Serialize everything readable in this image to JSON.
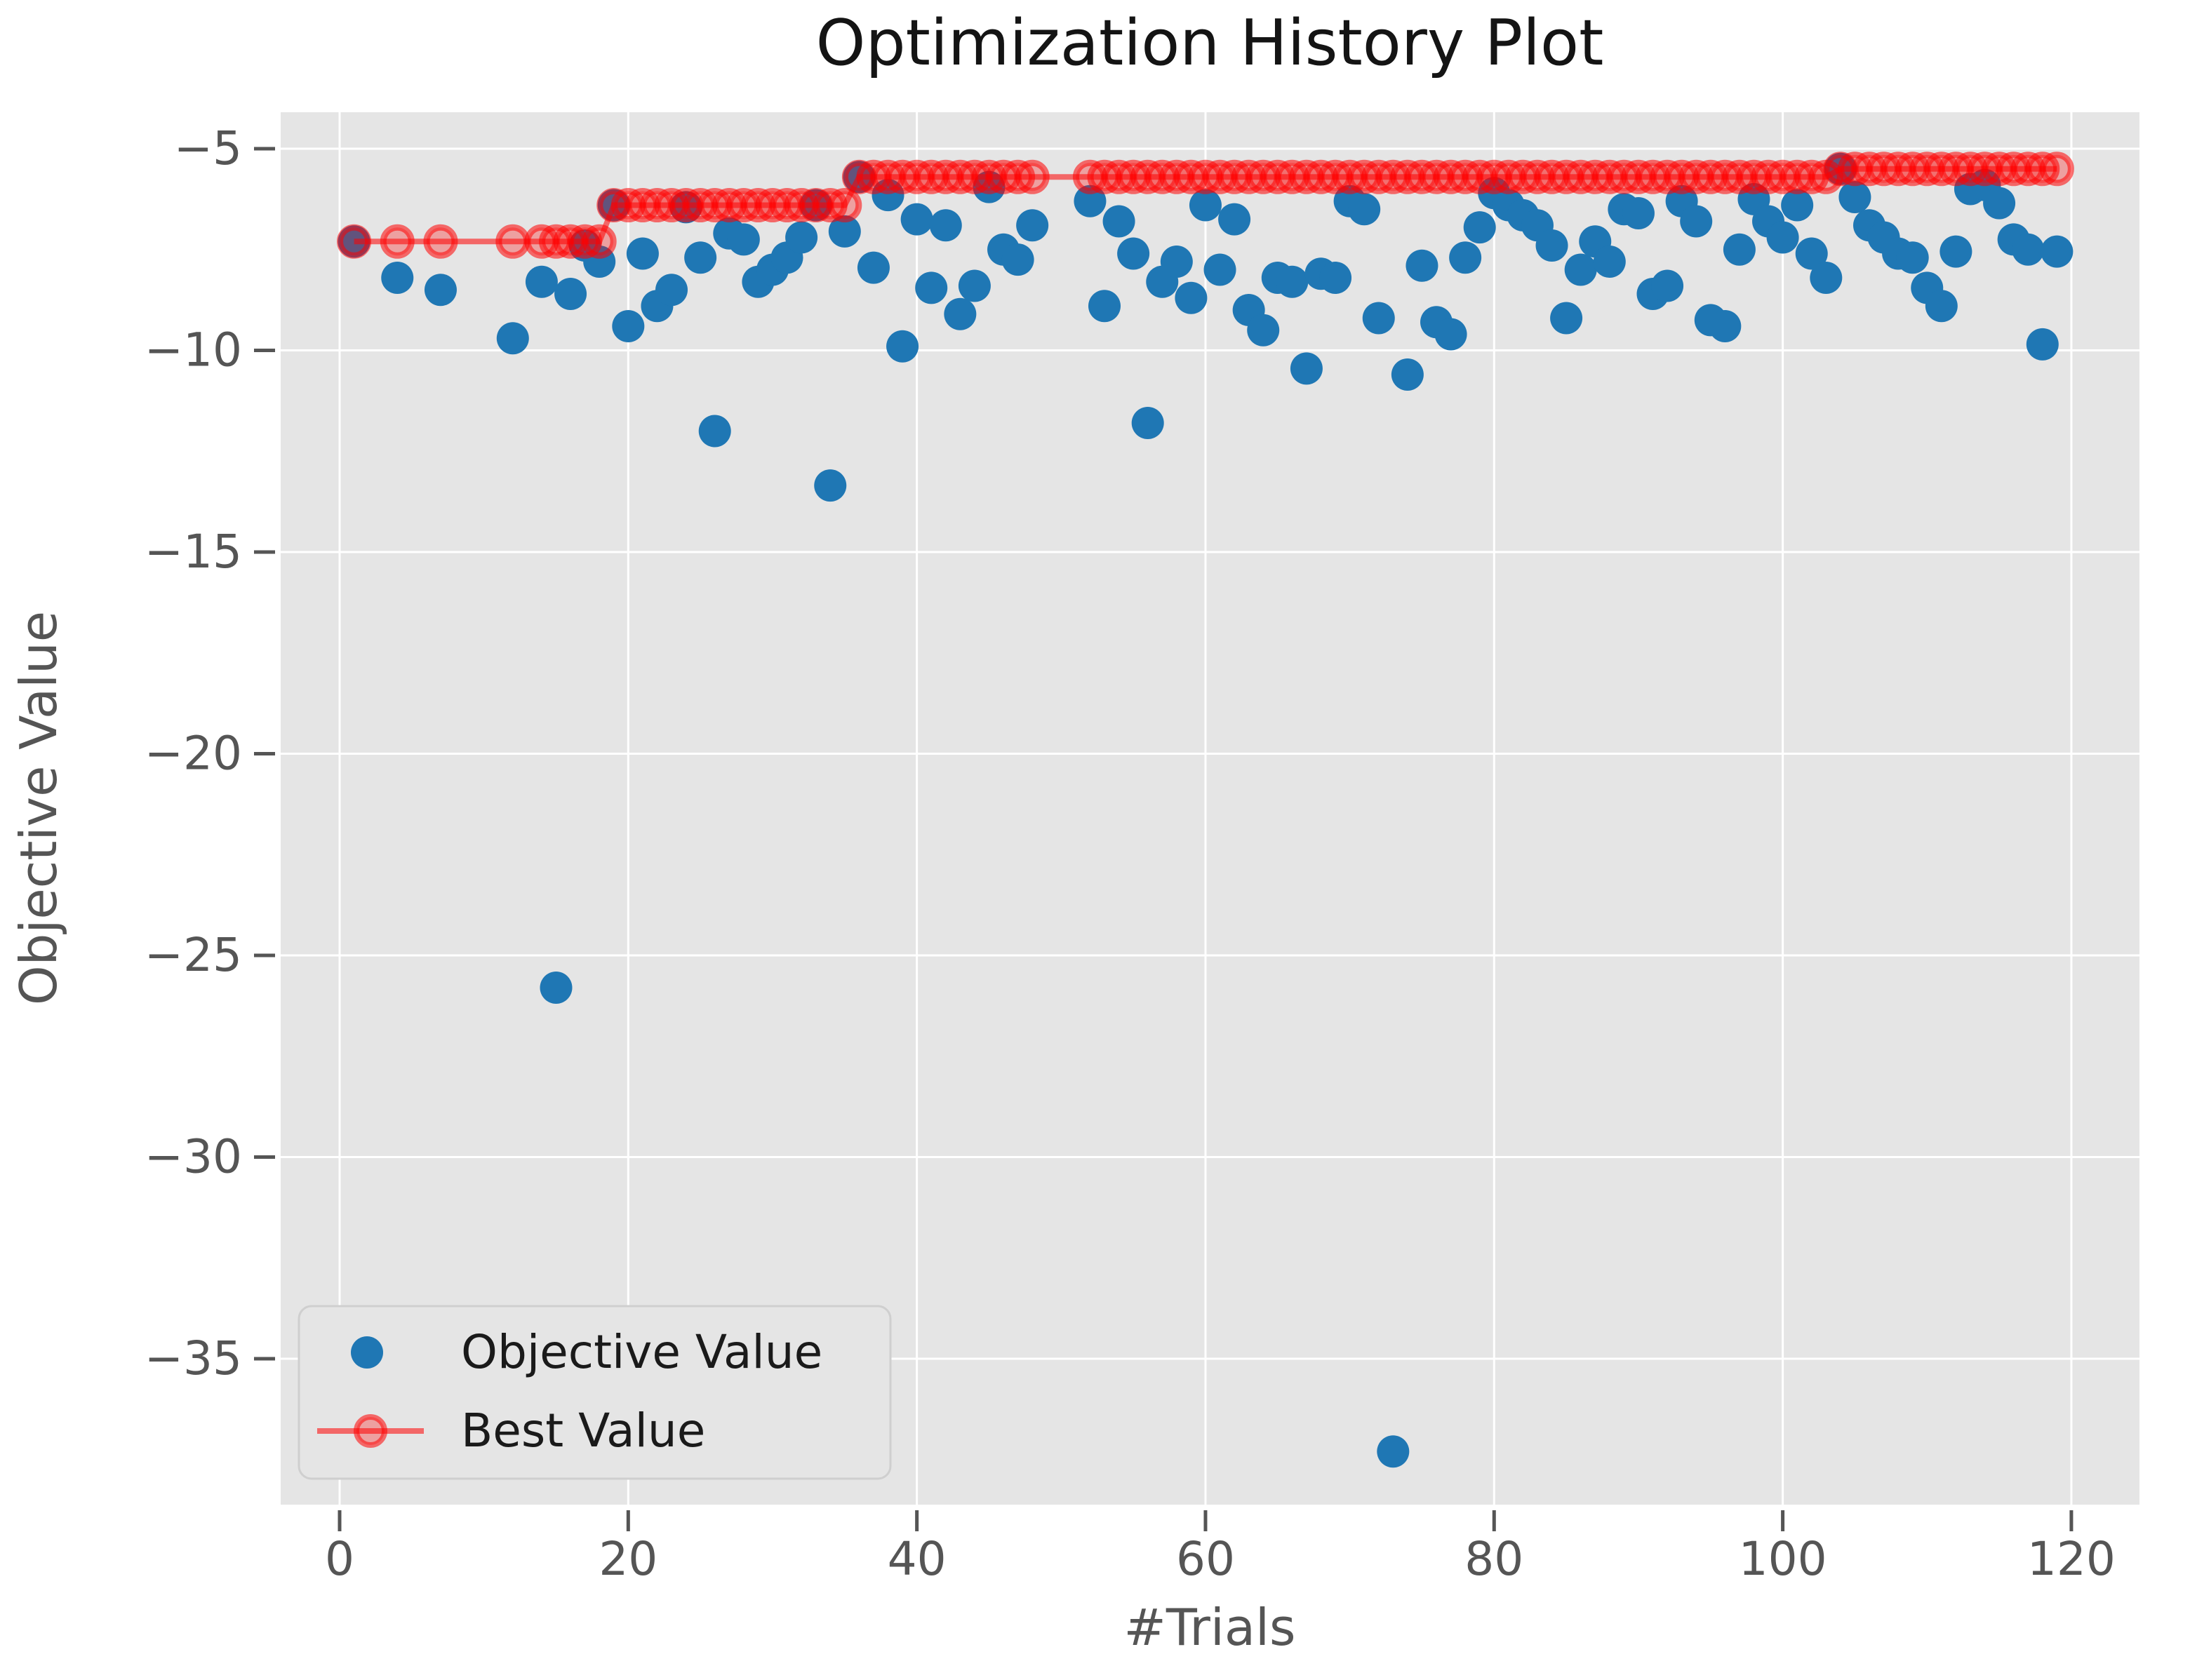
{
  "figure": {
    "title": "Optimization History Plot",
    "background_color": "#ffffff"
  },
  "chart_data": {
    "type": "scatter",
    "title": "Optimization History Plot",
    "xlabel": "#Trials",
    "ylabel": "Objective Value",
    "grid": true,
    "plot_background": "#e5e5e5",
    "grid_color": "#ffffff",
    "xlim": [
      -4.1,
      124.7
    ],
    "ylim": [
      -38.8,
      -4.1
    ],
    "x_tick_values": [
      0,
      20,
      40,
      60,
      80,
      100,
      120
    ],
    "x_tick_labels": [
      "0",
      "20",
      "40",
      "60",
      "80",
      "100",
      "120"
    ],
    "y_tick_values": [
      -5,
      -10,
      -15,
      -20,
      -25,
      -30,
      -35
    ],
    "y_tick_labels": [
      "−5",
      "−10",
      "−15",
      "−20",
      "−25",
      "−30",
      "−35"
    ],
    "legend_position": "lower left",
    "legend": [
      {
        "label": "Objective Value",
        "marker": "dot",
        "color": "#1f77b4"
      },
      {
        "label": "Best Value",
        "marker": "line-circle",
        "color": "rgba(255,0,0,0.55)"
      }
    ],
    "pruned_trials": [
      2,
      3,
      5,
      6,
      8,
      9,
      10,
      11,
      13,
      49,
      50,
      51
    ],
    "series": [
      {
        "name": "Objective Value",
        "type": "scatter",
        "color": "#1f77b4",
        "points": [
          [
            1,
            -7.3
          ],
          [
            4,
            -8.2
          ],
          [
            7,
            -8.5
          ],
          [
            12,
            -9.7
          ],
          [
            14,
            -8.3
          ],
          [
            15,
            -25.8
          ],
          [
            16,
            -8.6
          ],
          [
            17,
            -7.4
          ],
          [
            18,
            -7.8
          ],
          [
            19,
            -6.4
          ],
          [
            20,
            -9.4
          ],
          [
            21,
            -7.6
          ],
          [
            22,
            -8.9
          ],
          [
            23,
            -8.5
          ],
          [
            24,
            -6.45
          ],
          [
            25,
            -7.7
          ],
          [
            26,
            -12.0
          ],
          [
            27,
            -7.1
          ],
          [
            28,
            -7.25
          ],
          [
            29,
            -8.3
          ],
          [
            30,
            -8.0
          ],
          [
            31,
            -7.7
          ],
          [
            32,
            -7.2
          ],
          [
            33,
            -6.4
          ],
          [
            34,
            -13.35
          ],
          [
            35,
            -7.05
          ],
          [
            36,
            -5.7
          ],
          [
            37,
            -7.95
          ],
          [
            38,
            -6.15
          ],
          [
            39,
            -9.9
          ],
          [
            40,
            -6.75
          ],
          [
            41,
            -8.45
          ],
          [
            42,
            -6.9
          ],
          [
            43,
            -9.1
          ],
          [
            44,
            -8.4
          ],
          [
            45,
            -5.95
          ],
          [
            46,
            -7.5
          ],
          [
            47,
            -7.75
          ],
          [
            48,
            -6.9
          ],
          [
            52,
            -6.3
          ],
          [
            53,
            -8.9
          ],
          [
            54,
            -6.8
          ],
          [
            55,
            -7.6
          ],
          [
            56,
            -11.8
          ],
          [
            57,
            -8.3
          ],
          [
            58,
            -7.8
          ],
          [
            59,
            -8.7
          ],
          [
            60,
            -6.4
          ],
          [
            61,
            -8.0
          ],
          [
            62,
            -6.75
          ],
          [
            63,
            -9.0
          ],
          [
            64,
            -9.5
          ],
          [
            65,
            -8.2
          ],
          [
            66,
            -8.3
          ],
          [
            67,
            -10.45
          ],
          [
            68,
            -8.1
          ],
          [
            69,
            -8.2
          ],
          [
            70,
            -6.3
          ],
          [
            71,
            -6.5
          ],
          [
            72,
            -9.2
          ],
          [
            73,
            -37.3
          ],
          [
            74,
            -10.6
          ],
          [
            75,
            -7.9
          ],
          [
            76,
            -9.3
          ],
          [
            77,
            -9.6
          ],
          [
            78,
            -7.7
          ],
          [
            79,
            -6.95
          ],
          [
            80,
            -6.1
          ],
          [
            81,
            -6.4
          ],
          [
            82,
            -6.65
          ],
          [
            83,
            -6.9
          ],
          [
            84,
            -7.4
          ],
          [
            85,
            -9.2
          ],
          [
            86,
            -8.0
          ],
          [
            87,
            -7.3
          ],
          [
            88,
            -7.8
          ],
          [
            89,
            -6.5
          ],
          [
            90,
            -6.6
          ],
          [
            91,
            -8.6
          ],
          [
            92,
            -8.4
          ],
          [
            93,
            -6.3
          ],
          [
            94,
            -6.8
          ],
          [
            95,
            -9.25
          ],
          [
            96,
            -9.4
          ],
          [
            97,
            -7.5
          ],
          [
            98,
            -6.25
          ],
          [
            99,
            -6.8
          ],
          [
            100,
            -7.2
          ],
          [
            101,
            -6.4
          ],
          [
            102,
            -7.6
          ],
          [
            103,
            -8.2
          ],
          [
            104,
            -5.5
          ],
          [
            105,
            -6.2
          ],
          [
            106,
            -6.9
          ],
          [
            107,
            -7.2
          ],
          [
            108,
            -7.6
          ],
          [
            109,
            -7.7
          ],
          [
            110,
            -8.45
          ],
          [
            111,
            -8.9
          ],
          [
            112,
            -7.55
          ],
          [
            113,
            -6.0
          ],
          [
            114,
            -5.9
          ],
          [
            115,
            -6.35
          ],
          [
            116,
            -7.25
          ],
          [
            117,
            -7.5
          ],
          [
            118,
            -9.85
          ],
          [
            119,
            -7.55
          ]
        ]
      },
      {
        "name": "Best Value",
        "type": "step-line-with-markers",
        "line_color": "rgba(255,0,0,0.55)",
        "marker_fill": "rgba(255,0,0,0.30)",
        "marker_stroke": "rgba(255,0,0,0.55)",
        "best_steps": [
          [
            1,
            -7.3
          ],
          [
            19,
            -6.4
          ],
          [
            36,
            -5.7
          ],
          [
            104,
            -5.5
          ]
        ],
        "first_trial": 1,
        "last_trial": 119
      }
    ]
  },
  "colors": {
    "objective_blue": "#1f77b4",
    "best_red": "rgba(255,0,0,0.55)",
    "plot_bg": "#e5e5e5",
    "grid_white": "#ffffff",
    "tick_gray": "#555555",
    "legend_bg": "#e5e5e5",
    "legend_border": "#cfcfcf"
  }
}
